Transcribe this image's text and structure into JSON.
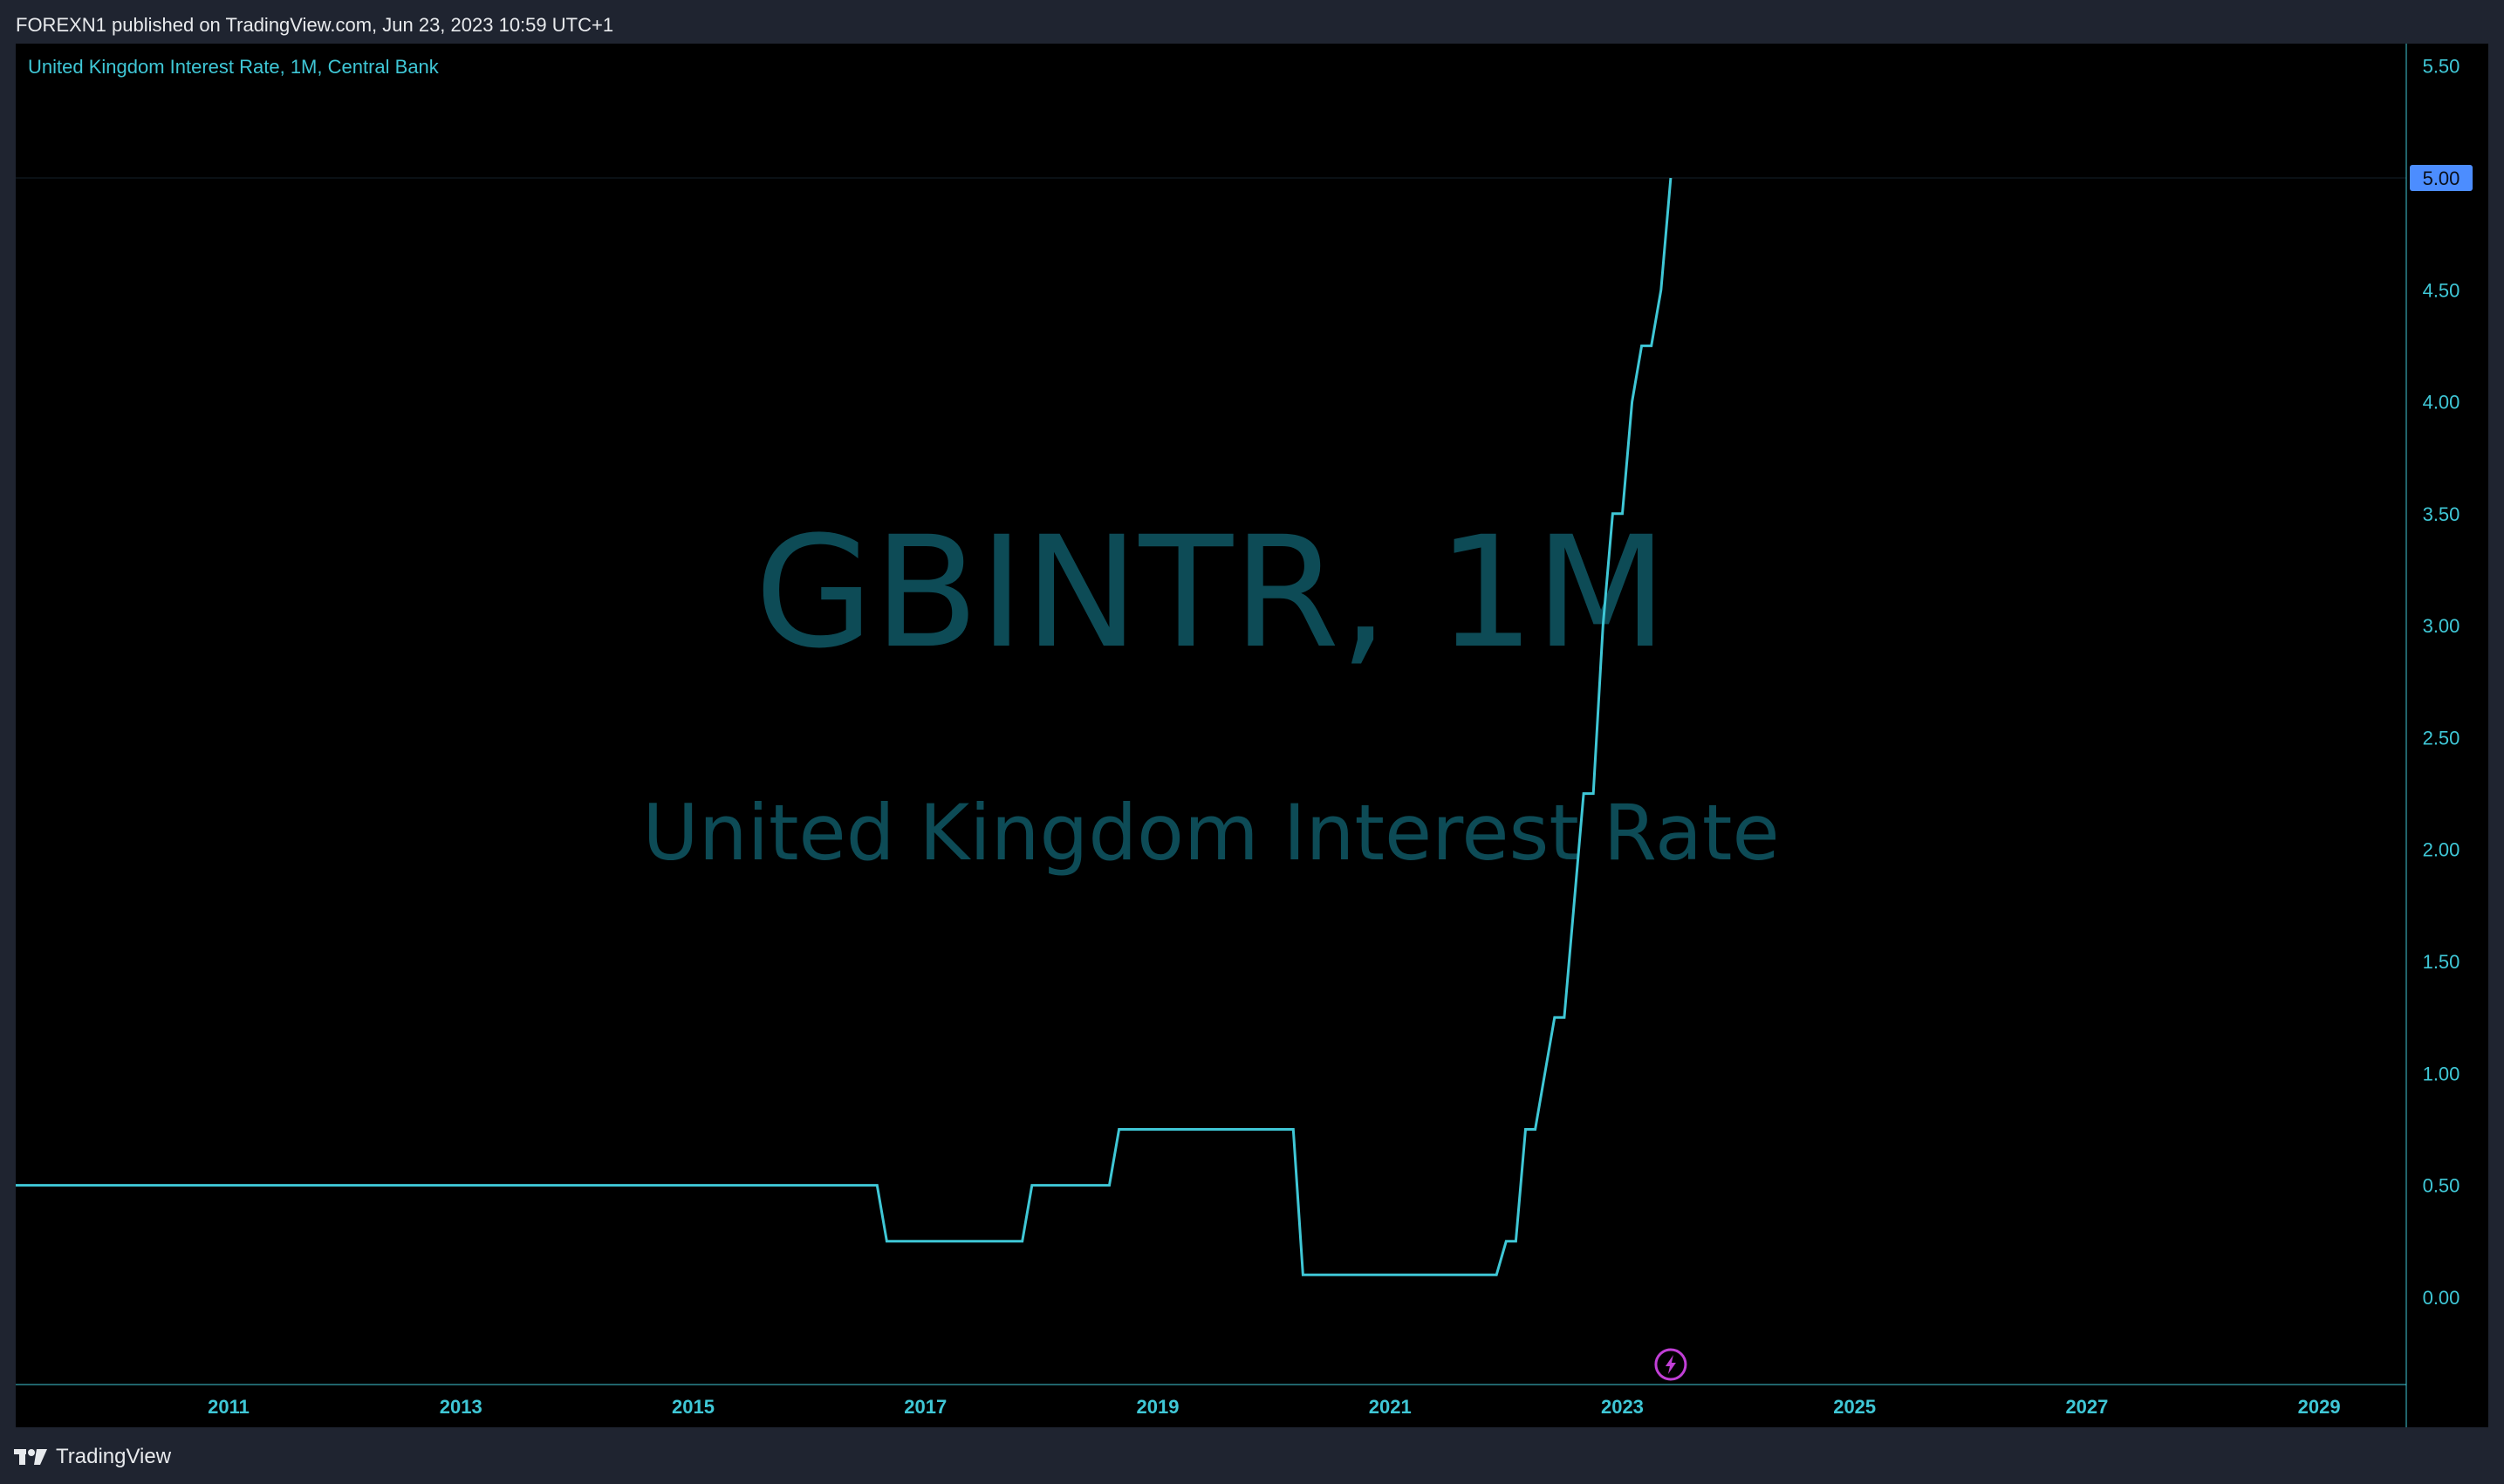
{
  "header": {
    "published_text": "FOREXN1 published on TradingView.com, Jun 23, 2023 10:59 UTC+1"
  },
  "footer": {
    "logo_text": "TradingView",
    "logo_icon": "tradingview-logo-icon"
  },
  "colors": {
    "line": "#3fc7d6",
    "axis_text": "#3fc7d6",
    "watermark": "#0d4b56",
    "price_label_bg": "#4c8dff",
    "background": "#000000",
    "frame": "#1f2430",
    "event_icon": "#c13fd6"
  },
  "chart_data": {
    "type": "line",
    "legend": "United Kingdom Interest Rate, 1M, Central Bank",
    "watermark": {
      "symbol": "GBINTR, 1M",
      "description": "United Kingdom Interest Rate"
    },
    "x": [
      "2009-07",
      "2016-08",
      "2016-09",
      "2017-11",
      "2017-12",
      "2018-08",
      "2018-09",
      "2020-03",
      "2020-04",
      "2021-12",
      "2022-01",
      "2022-02",
      "2022-03",
      "2022-04",
      "2022-05",
      "2022-06",
      "2022-07",
      "2022-08",
      "2022-09",
      "2022-10",
      "2022-11",
      "2022-12",
      "2023-01",
      "2023-02",
      "2023-03",
      "2023-04",
      "2023-05",
      "2023-06"
    ],
    "series": [
      {
        "values": [
          0.5,
          0.5,
          0.25,
          0.25,
          0.5,
          0.5,
          0.75,
          0.75,
          0.1,
          0.1,
          0.25,
          0.25,
          0.75,
          0.75,
          1.0,
          1.25,
          1.25,
          1.75,
          2.25,
          2.25,
          3.0,
          3.5,
          3.5,
          4.0,
          4.25,
          4.25,
          4.5,
          5.0
        ]
      }
    ],
    "last_value_label": "5.00",
    "x_ticks": [
      "2011",
      "2013",
      "2015",
      "2017",
      "2019",
      "2021",
      "2023",
      "2025",
      "2027",
      "2029"
    ],
    "y_ticks": [
      "5.50",
      "5.00",
      "4.50",
      "4.00",
      "3.50",
      "3.00",
      "2.50",
      "2.00",
      "1.50",
      "1.00",
      "0.50",
      "0.00"
    ],
    "y_tick_values": [
      5.5,
      5.0,
      4.5,
      4.0,
      3.5,
      3.0,
      2.5,
      2.0,
      1.5,
      1.0,
      0.5,
      0.0
    ],
    "xlim": [
      "2009-03",
      "2029-10"
    ],
    "ylim": [
      -0.39,
      5.6
    ],
    "grid": false,
    "event_marker": {
      "x": "2023-06",
      "icon": "lightning-bolt-icon"
    }
  }
}
